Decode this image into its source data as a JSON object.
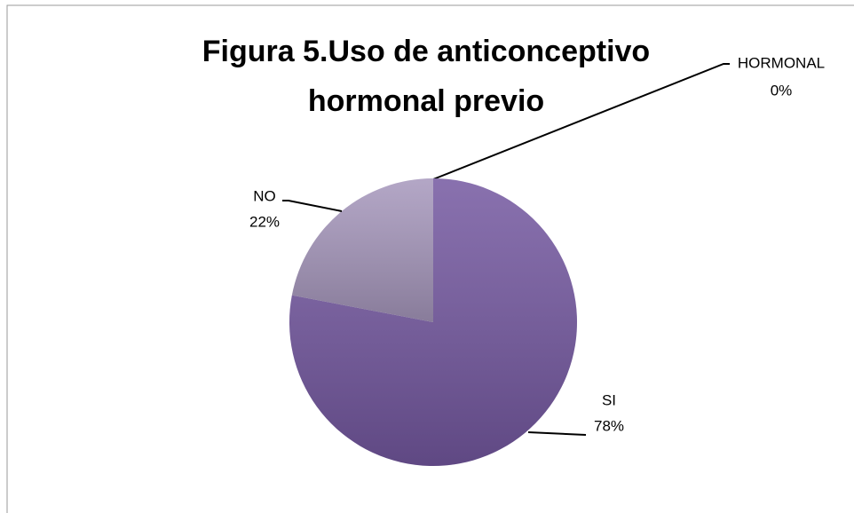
{
  "chart_data": {
    "type": "pie",
    "title": "Figura 5.Uso de anticonceptivo hormonal previo",
    "categories": [
      "HORMONAL",
      "SI",
      "NO"
    ],
    "values": [
      0,
      78,
      22
    ],
    "value_labels": [
      "0%",
      "78%",
      "22%"
    ],
    "colors": [
      "#4f81bd",
      "#7458a0",
      "#a697bc"
    ]
  }
}
